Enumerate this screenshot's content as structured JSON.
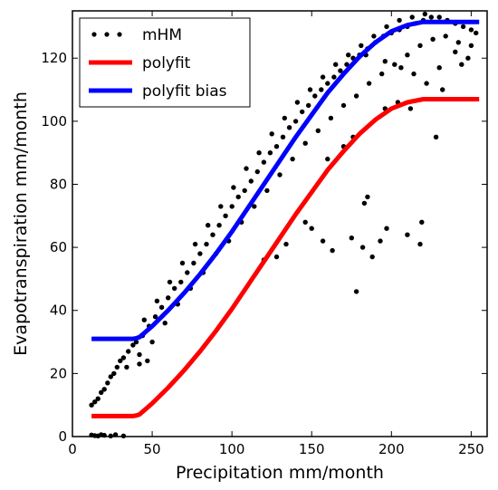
{
  "chart_data": {
    "type": "scatter",
    "xlabel": "Precipitation mm/month",
    "ylabel": "Evapotranspiration mm/month",
    "xlim": [
      0,
      260
    ],
    "ylim": [
      0,
      135
    ],
    "xticks": [
      "0",
      "50",
      "100",
      "150",
      "200",
      "250"
    ],
    "yticks": [
      "0",
      "20",
      "40",
      "60",
      "80",
      "100",
      "120"
    ],
    "legend_position": "top-left",
    "series": [
      {
        "name": "mHM",
        "kind": "scatter",
        "color": "#000000",
        "points": [
          [
            12,
            0.5
          ],
          [
            14,
            0.3
          ],
          [
            16,
            0.2
          ],
          [
            18,
            0.6
          ],
          [
            20,
            0.4
          ],
          [
            24,
            0.2
          ],
          [
            27,
            0.6
          ],
          [
            32,
            0.2
          ],
          [
            12,
            10
          ],
          [
            14,
            11
          ],
          [
            16,
            12
          ],
          [
            18,
            14
          ],
          [
            20,
            15
          ],
          [
            22,
            17
          ],
          [
            24,
            19
          ],
          [
            26,
            20
          ],
          [
            28,
            22
          ],
          [
            30,
            24
          ],
          [
            32,
            25
          ],
          [
            35,
            27
          ],
          [
            38,
            29
          ],
          [
            40,
            30
          ],
          [
            44,
            32
          ],
          [
            48,
            35
          ],
          [
            52,
            38
          ],
          [
            56,
            41
          ],
          [
            60,
            44
          ],
          [
            64,
            47
          ],
          [
            68,
            49
          ],
          [
            72,
            52
          ],
          [
            76,
            55
          ],
          [
            80,
            58
          ],
          [
            84,
            61
          ],
          [
            88,
            64
          ],
          [
            92,
            67
          ],
          [
            96,
            70
          ],
          [
            100,
            73
          ],
          [
            104,
            76
          ],
          [
            108,
            78
          ],
          [
            112,
            81
          ],
          [
            116,
            84
          ],
          [
            120,
            87
          ],
          [
            124,
            90
          ],
          [
            128,
            92
          ],
          [
            132,
            95
          ],
          [
            136,
            98
          ],
          [
            140,
            100
          ],
          [
            144,
            103
          ],
          [
            148,
            105
          ],
          [
            152,
            108
          ],
          [
            156,
            110
          ],
          [
            160,
            112
          ],
          [
            164,
            114
          ],
          [
            168,
            116
          ],
          [
            172,
            118
          ],
          [
            176,
            120
          ],
          [
            180,
            121
          ],
          [
            185,
            123
          ],
          [
            190,
            125
          ],
          [
            195,
            127
          ],
          [
            200,
            128
          ],
          [
            205,
            129
          ],
          [
            210,
            130
          ],
          [
            215,
            131
          ],
          [
            220,
            132
          ],
          [
            225,
            133
          ],
          [
            230,
            133
          ],
          [
            235,
            132
          ],
          [
            240,
            131
          ],
          [
            245,
            130
          ],
          [
            250,
            129
          ],
          [
            253,
            128
          ],
          [
            34,
            22
          ],
          [
            42,
            26
          ],
          [
            50,
            30
          ],
          [
            58,
            36
          ],
          [
            66,
            42
          ],
          [
            74,
            47
          ],
          [
            82,
            52
          ],
          [
            90,
            58
          ],
          [
            98,
            62
          ],
          [
            106,
            68
          ],
          [
            114,
            73
          ],
          [
            122,
            78
          ],
          [
            130,
            83
          ],
          [
            138,
            88
          ],
          [
            146,
            93
          ],
          [
            154,
            97
          ],
          [
            162,
            101
          ],
          [
            170,
            105
          ],
          [
            178,
            108
          ],
          [
            186,
            112
          ],
          [
            194,
            115
          ],
          [
            202,
            118
          ],
          [
            210,
            121
          ],
          [
            218,
            124
          ],
          [
            226,
            126
          ],
          [
            234,
            127
          ],
          [
            242,
            125
          ],
          [
            250,
            124
          ],
          [
            45,
            37
          ],
          [
            53,
            43
          ],
          [
            61,
            49
          ],
          [
            69,
            55
          ],
          [
            77,
            61
          ],
          [
            85,
            67
          ],
          [
            93,
            73
          ],
          [
            101,
            79
          ],
          [
            109,
            85
          ],
          [
            117,
            90
          ],
          [
            125,
            96
          ],
          [
            133,
            101
          ],
          [
            141,
            106
          ],
          [
            149,
            110
          ],
          [
            157,
            114
          ],
          [
            165,
            118
          ],
          [
            173,
            121
          ],
          [
            181,
            124
          ],
          [
            189,
            127
          ],
          [
            197,
            130
          ],
          [
            205,
            132
          ],
          [
            213,
            133
          ],
          [
            221,
            134
          ],
          [
            184,
            121
          ],
          [
            196,
            119
          ],
          [
            206,
            117
          ],
          [
            214,
            115
          ],
          [
            222,
            112
          ],
          [
            232,
            110
          ],
          [
            244,
            118
          ],
          [
            42,
            23
          ],
          [
            47,
            24
          ],
          [
            146,
            68
          ],
          [
            150,
            66
          ],
          [
            157,
            62
          ],
          [
            163,
            59
          ],
          [
            175,
            63
          ],
          [
            182,
            60
          ],
          [
            188,
            57
          ],
          [
            178,
            46
          ],
          [
            183,
            74
          ],
          [
            185,
            76
          ],
          [
            193,
            62
          ],
          [
            197,
            66
          ],
          [
            210,
            64
          ],
          [
            218,
            61
          ],
          [
            219,
            68
          ],
          [
            228,
            95
          ],
          [
            120,
            56
          ],
          [
            128,
            57
          ],
          [
            134,
            61
          ],
          [
            204,
            106
          ],
          [
            212,
            104
          ],
          [
            230,
            117
          ],
          [
            240,
            122
          ],
          [
            248,
            120
          ],
          [
            170,
            92
          ],
          [
            176,
            95
          ],
          [
            160,
            88
          ],
          [
            196,
            104
          ]
        ]
      },
      {
        "name": "polyfit",
        "kind": "line",
        "color": "#ff0000",
        "x": [
          12,
          20,
          30,
          38,
          40,
          42,
          50,
          60,
          70,
          80,
          90,
          100,
          110,
          120,
          130,
          140,
          150,
          160,
          170,
          180,
          190,
          200,
          210,
          220,
          225,
          230,
          240,
          250,
          255
        ],
        "y": [
          6.5,
          6.5,
          6.5,
          6.5,
          6.7,
          7.0,
          10.5,
          15.5,
          21.0,
          27.0,
          33.5,
          40.5,
          48.0,
          55.5,
          63.0,
          70.5,
          77.5,
          84.5,
          90.5,
          96.0,
          100.5,
          104.0,
          106.0,
          107.0,
          107.0,
          107.0,
          107.0,
          107.0,
          107.0
        ]
      },
      {
        "name": "polyfit bias",
        "kind": "line",
        "color": "#0000ff",
        "x": [
          12,
          20,
          30,
          38,
          40,
          42,
          50,
          60,
          70,
          80,
          90,
          100,
          110,
          120,
          130,
          140,
          150,
          160,
          170,
          180,
          190,
          200,
          210,
          220,
          225,
          230,
          240,
          250,
          255
        ],
        "y": [
          31.0,
          31.0,
          31.0,
          31.0,
          31.2,
          31.5,
          35.0,
          40.0,
          45.5,
          51.5,
          58.0,
          65.0,
          72.5,
          80.0,
          87.5,
          95.0,
          102.0,
          109.0,
          115.0,
          120.5,
          125.0,
          128.5,
          130.5,
          131.5,
          131.5,
          131.5,
          131.5,
          131.5,
          131.5
        ]
      }
    ]
  }
}
